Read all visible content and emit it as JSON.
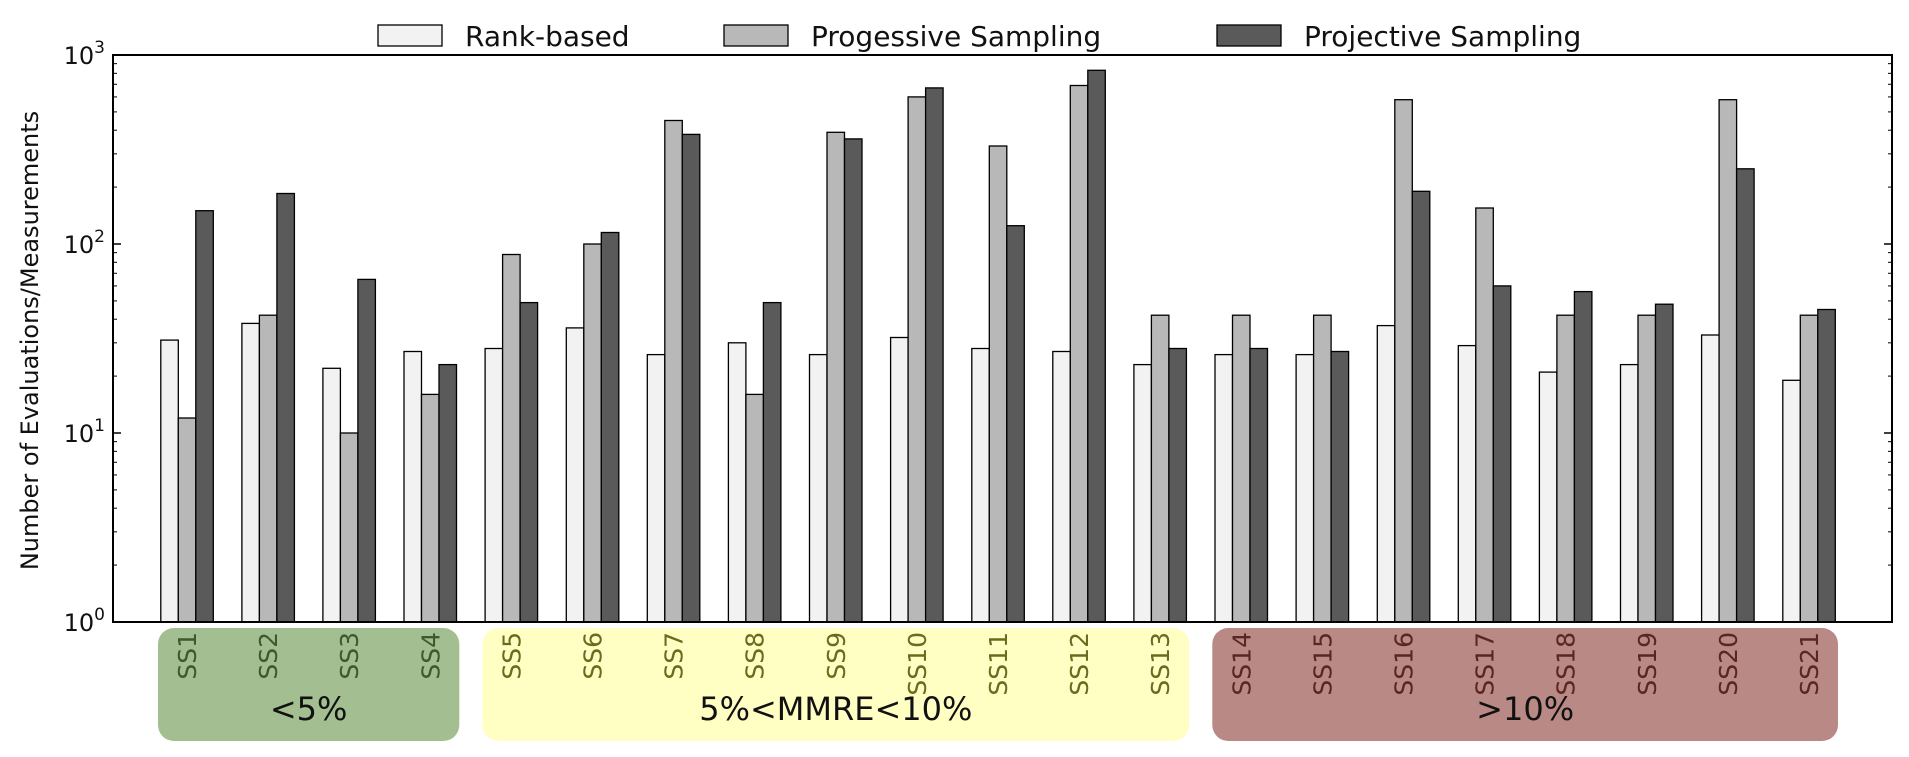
{
  "chart_data": {
    "type": "bar",
    "ylabel": "Number of Evaluations/Measurements",
    "xlabel": "",
    "yscale": "log",
    "ylim": [
      1,
      1000
    ],
    "yticks": [
      {
        "value": 1,
        "base": "10",
        "exp": "0"
      },
      {
        "value": 10,
        "base": "10",
        "exp": "1"
      },
      {
        "value": 100,
        "base": "10",
        "exp": "2"
      },
      {
        "value": 1000,
        "base": "10",
        "exp": "3"
      }
    ],
    "legend_position": "top-center",
    "categories": [
      "SS1",
      "SS2",
      "SS3",
      "SS4",
      "SS5",
      "SS6",
      "SS7",
      "SS8",
      "SS9",
      "SS10",
      "SS11",
      "SS12",
      "SS13",
      "SS14",
      "SS15",
      "SS16",
      "SS17",
      "SS18",
      "SS19",
      "SS20",
      "SS21"
    ],
    "series": [
      {
        "name": "Rank-based",
        "color": "#f2f2f2",
        "values": [
          31,
          38,
          22,
          27,
          28,
          36,
          26,
          30,
          26,
          32,
          28,
          27,
          23,
          26,
          26,
          37,
          29,
          21,
          23,
          33,
          19
        ]
      },
      {
        "name": "Progessive Sampling",
        "color": "#b8b8b8",
        "values": [
          12,
          42,
          10,
          16,
          88,
          100,
          450,
          16,
          390,
          600,
          330,
          690,
          42,
          42,
          42,
          580,
          155,
          42,
          42,
          580,
          42
        ]
      },
      {
        "name": "Projective Sampling",
        "color": "#5a5a5a",
        "values": [
          150,
          185,
          65,
          23,
          49,
          115,
          380,
          49,
          360,
          670,
          125,
          830,
          28,
          28,
          27,
          190,
          60,
          56,
          48,
          250,
          45
        ]
      }
    ],
    "groups": [
      {
        "label": "<5%",
        "start": 0,
        "end": 3,
        "color": "#a3bf91",
        "text_color": "#3c5a2e"
      },
      {
        "label": "5%<MMRE<10%",
        "start": 4,
        "end": 12,
        "color": "#ffffc4",
        "text_color": "#6b6b1e"
      },
      {
        "label": ">10%",
        "start": 13,
        "end": 20,
        "color": "#b98986",
        "text_color": "#5a2622"
      }
    ]
  }
}
